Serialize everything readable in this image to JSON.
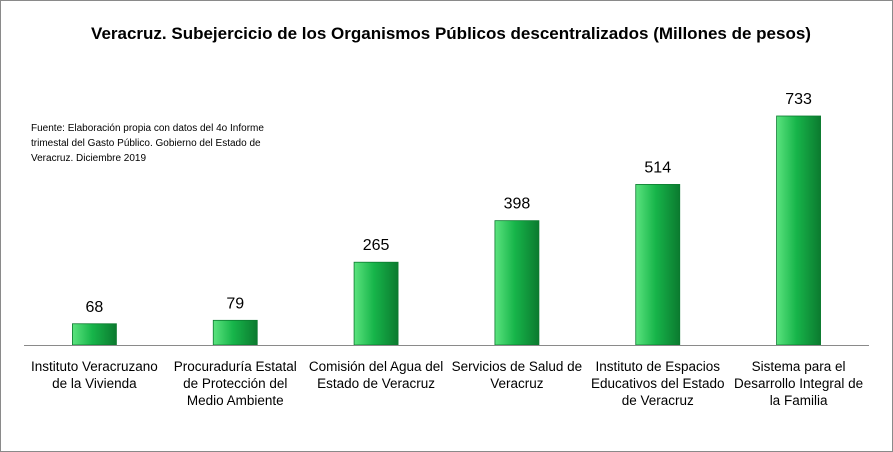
{
  "chart_data": {
    "type": "bar",
    "title": "Veracruz. Subejercicio  de los Organismos Públicos descentralizados (Millones de pesos)",
    "note": "Fuente: Elaboración propia con datos del 4o Informe trimestal del Gasto Público. Gobierno del Estado de Veracruz. Diciembre 2019",
    "categories": [
      "Instituto Veracruzano de la Vivienda",
      "Procuraduría Estatal de Protección del Medio Ambiente",
      "Comisión del Agua del Estado de Veracruz",
      "Servicios de Salud de Veracruz",
      "Instituto de Espacios Educativos del Estado de Veracruz",
      "Sistema para el Desarrollo Integral de la Familia"
    ],
    "values": [
      68,
      79,
      265,
      398,
      514,
      733
    ],
    "data_labels": [
      "68",
      "79",
      "265",
      "398",
      "514",
      "733"
    ],
    "ylim": [
      0,
      733
    ],
    "grid": false,
    "legend": "none",
    "xlabel": "",
    "ylabel": "",
    "colors": {
      "bar_light": "#5be37e",
      "bar_mid": "#17b54a",
      "bar_dark": "#0b7a2f",
      "axis": "#8a8a8a"
    }
  }
}
